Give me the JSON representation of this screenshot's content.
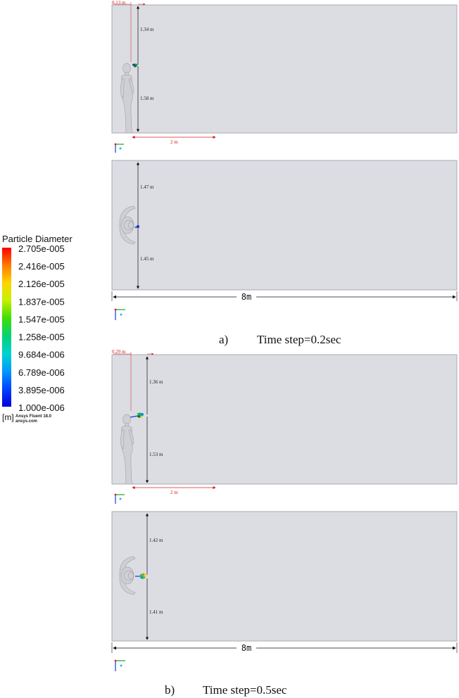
{
  "legend": {
    "title": "Particle Diameter",
    "ticks": [
      "2.705e-005",
      "2.416e-005",
      "2.126e-005",
      "1.837e-005",
      "1.547e-005",
      "1.258e-005",
      "9.684e-006",
      "6.789e-006",
      "3.895e-006",
      "1.000e-006"
    ],
    "unit": "[m]",
    "brand_line1": "Ansys Fluent 18.0",
    "brand_line2": "ansys.com",
    "colors": [
      "#ff0000",
      "#ff7a00",
      "#ffd400",
      "#c8f000",
      "#40e000",
      "#00d27a",
      "#00d2d2",
      "#0096ff",
      "#0040ff",
      "#0000d8"
    ]
  },
  "panel_a": {
    "side": {
      "offset_label": "0.13 m",
      "top_label": "1.34 m",
      "bottom_label": "1.58 m",
      "width_label": "2 m"
    },
    "top": {
      "top_label": "1.47 m",
      "bottom_label": "1.45 m",
      "length_label": "8m"
    },
    "caption_letter": "a)",
    "caption_text": "Time step=0.2sec"
  },
  "panel_b": {
    "side": {
      "offset_label": "0.29 m",
      "top_label": "1.36 m",
      "bottom_label": "1.53 m",
      "width_label": "2 m"
    },
    "top": {
      "top_label": "1.42 m",
      "bottom_label": "1.41 m",
      "length_label": "8m"
    },
    "caption_letter": "b)",
    "caption_text": "Time step=0.5sec"
  }
}
